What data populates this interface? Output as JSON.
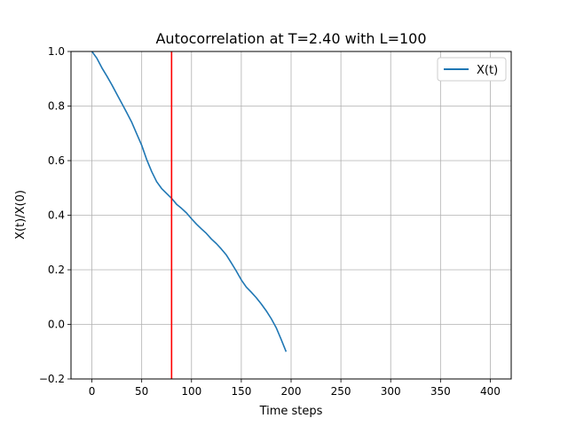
{
  "chart_data": {
    "type": "line",
    "title": "Autocorrelation at T=2.40 with L=100",
    "xlabel": "Time steps",
    "ylabel": "X(t)/X(0)",
    "xlim": [
      -21,
      421
    ],
    "ylim": [
      -0.2,
      1.0
    ],
    "xticks": [
      0,
      50,
      100,
      150,
      200,
      250,
      300,
      350,
      400
    ],
    "yticks": [
      -0.2,
      0.0,
      0.2,
      0.4,
      0.6,
      0.8,
      1.0
    ],
    "xtick_labels": [
      "0",
      "50",
      "100",
      "150",
      "200",
      "250",
      "300",
      "350",
      "400"
    ],
    "ytick_labels": [
      "−0.2",
      "0.0",
      "0.2",
      "0.4",
      "0.6",
      "0.8",
      "1.0"
    ],
    "grid": true,
    "legend_position": "top-right",
    "series": [
      {
        "name": "X(t)",
        "color": "#1f77b4",
        "x": [
          0,
          5,
          10,
          15,
          20,
          25,
          30,
          35,
          40,
          45,
          50,
          55,
          60,
          65,
          70,
          75,
          80,
          85,
          90,
          95,
          100,
          105,
          110,
          115,
          120,
          125,
          130,
          135,
          140,
          145,
          150,
          155,
          160,
          165,
          170,
          175,
          180,
          185,
          190,
          195
        ],
        "y": [
          1.0,
          0.975,
          0.94,
          0.91,
          0.878,
          0.844,
          0.81,
          0.776,
          0.74,
          0.698,
          0.656,
          0.604,
          0.56,
          0.523,
          0.498,
          0.48,
          0.462,
          0.44,
          0.425,
          0.408,
          0.387,
          0.367,
          0.35,
          0.333,
          0.313,
          0.296,
          0.276,
          0.254,
          0.225,
          0.195,
          0.163,
          0.137,
          0.118,
          0.098,
          0.075,
          0.05,
          0.021,
          -0.012,
          -0.055,
          -0.1
        ]
      }
    ],
    "vline": {
      "x": 80,
      "color": "#ff0000"
    }
  }
}
